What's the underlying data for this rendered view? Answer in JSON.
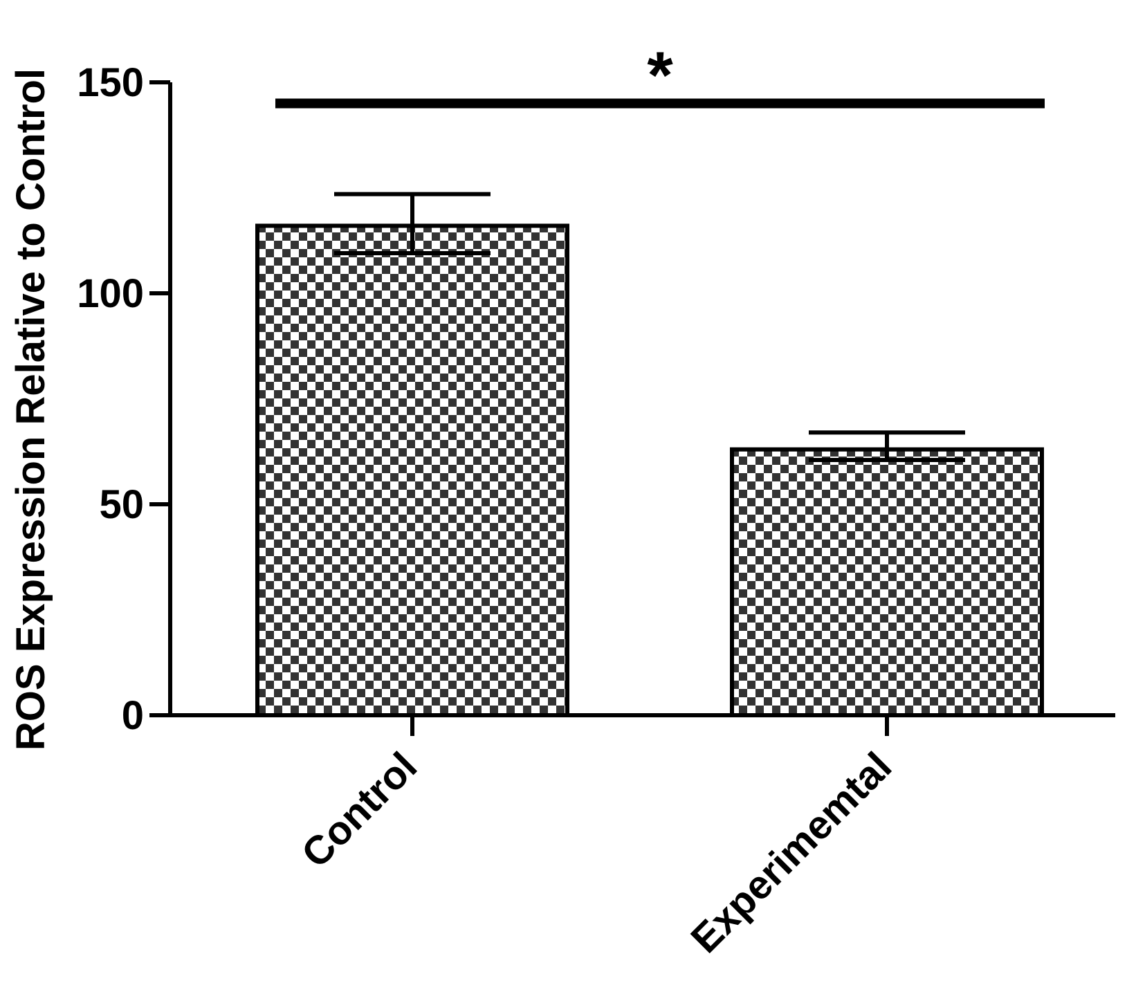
{
  "chart_data": {
    "type": "bar",
    "title": "",
    "xlabel": "",
    "ylabel": "ROS Expression Relative to Control",
    "categories": [
      "Control",
      "Experimemtal"
    ],
    "series": [
      {
        "values": [
          116,
          63
        ],
        "error_upper": [
          7.5,
          4
        ],
        "error_lower": [
          6.5,
          2.5
        ]
      }
    ],
    "ylim": [
      0,
      150
    ],
    "yticks": [
      0,
      50,
      100,
      150
    ],
    "ytick_labels": [
      "0",
      "50",
      "100",
      "150"
    ],
    "grid": false,
    "legend": "none",
    "bar_pattern": "checkerboard",
    "colors": {
      "bar_fill": "#ffffff",
      "bar_pattern": "#333333",
      "stroke": "#000000"
    },
    "annotations": [
      {
        "type": "significance",
        "text": "*",
        "from": "Control",
        "to": "Experimemtal",
        "y": 145
      }
    ]
  }
}
